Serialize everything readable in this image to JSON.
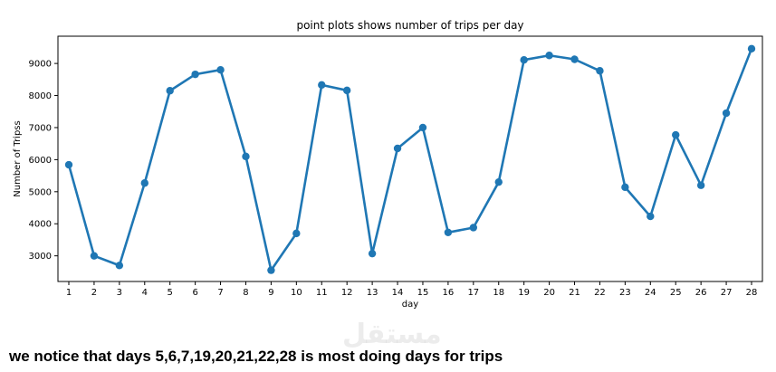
{
  "chart_data": {
    "type": "line",
    "title": "point plots shows number of trips  per day",
    "xlabel": "day",
    "ylabel": "Number of Tripss",
    "categories": [
      "1",
      "2",
      "3",
      "4",
      "5",
      "6",
      "7",
      "8",
      "9",
      "10",
      "11",
      "12",
      "13",
      "14",
      "15",
      "16",
      "17",
      "18",
      "19",
      "20",
      "21",
      "22",
      "23",
      "24",
      "25",
      "26",
      "27",
      "28"
    ],
    "values": [
      5840,
      3000,
      2700,
      5270,
      8150,
      8660,
      8800,
      6100,
      2550,
      3700,
      8330,
      8160,
      3070,
      6350,
      7000,
      3730,
      3880,
      5300,
      9110,
      9250,
      9130,
      8770,
      5140,
      4230,
      6770,
      5200,
      7450,
      9460
    ],
    "yticks": [
      3000,
      4000,
      5000,
      6000,
      7000,
      8000,
      9000
    ],
    "ylim": [
      2200,
      9850
    ],
    "grid": false,
    "marker": "circle",
    "color": "#1f77b4"
  },
  "conclusion": "we notice that days 5,6,7,19,20,21,22,28 is most doing days for trips",
  "watermark": "مستقل"
}
